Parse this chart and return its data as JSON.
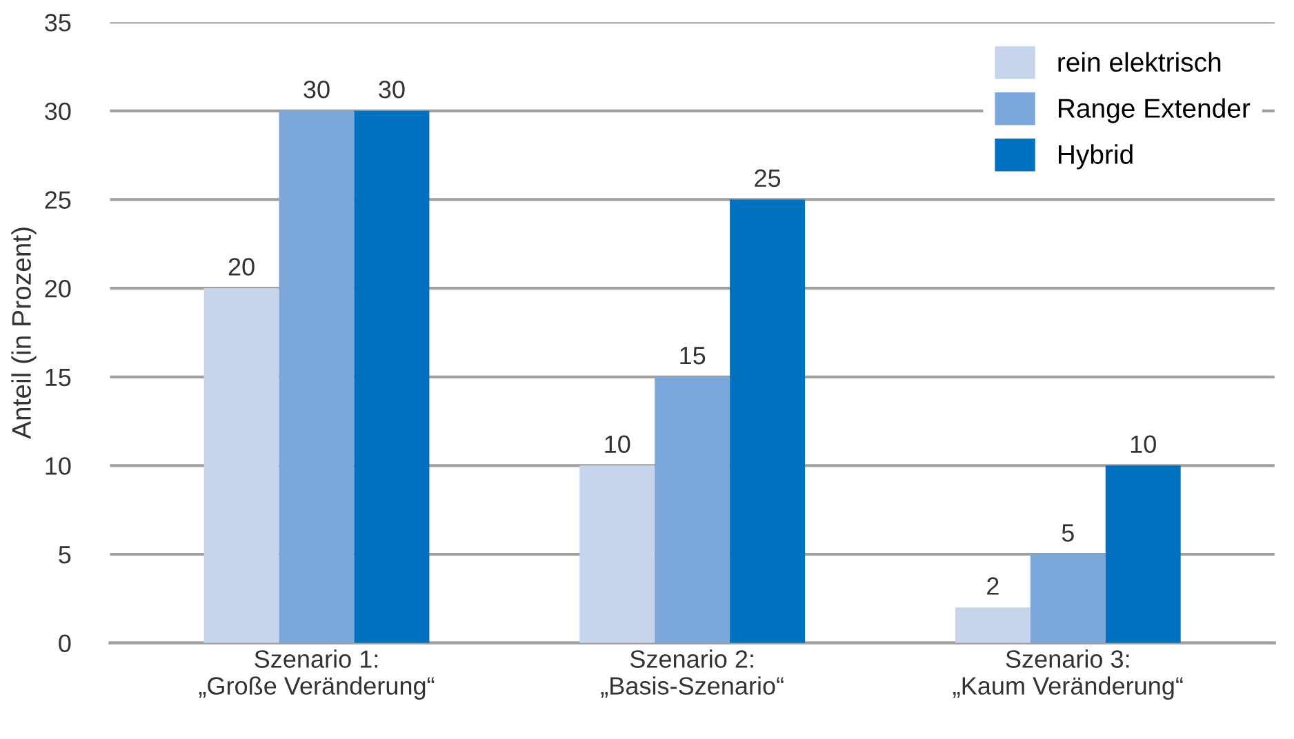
{
  "chart_data": {
    "type": "bar",
    "ylabel": "Anteil (in Prozent)",
    "categories": [
      "Szenario 1:\n„Große Veränderung“",
      "Szenario 2:\n„Basis-Szenario“",
      "Szenario 3:\n„Kaum Veränderung“"
    ],
    "series": [
      {
        "name": "rein elektrisch",
        "color": "#c6d4ec",
        "values": [
          20,
          10,
          2
        ]
      },
      {
        "name": "Range Extender",
        "color": "#7ba7da",
        "values": [
          30,
          15,
          5
        ]
      },
      {
        "name": "Hybrid",
        "color": "#0070bf",
        "values": [
          30,
          25,
          10
        ]
      }
    ],
    "ylim": [
      0,
      35
    ],
    "yticks": [
      0,
      5,
      10,
      15,
      20,
      25,
      30,
      35
    ],
    "grid": "y",
    "legend": "top right",
    "data_labels": true
  }
}
